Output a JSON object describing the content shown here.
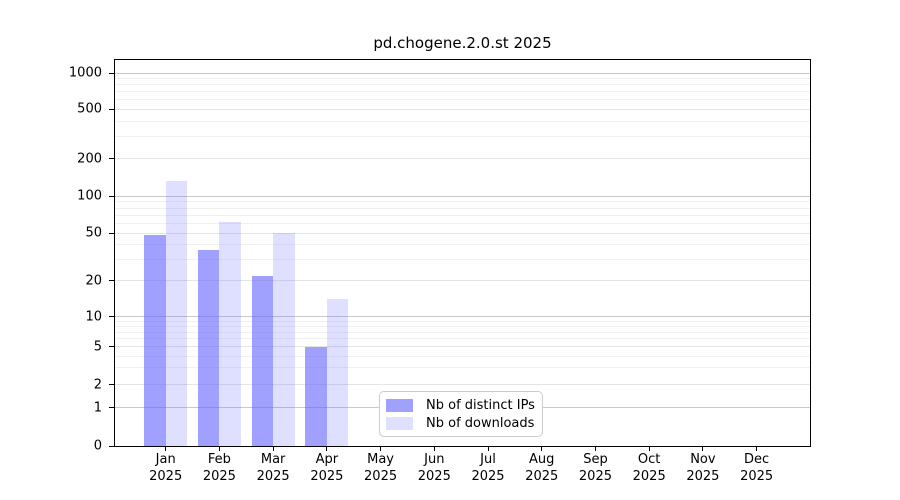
{
  "chart_data": {
    "type": "bar",
    "title": "pd.chogene.2.0.st 2025",
    "categories": [
      "Jan",
      "Feb",
      "Mar",
      "Apr",
      "May",
      "Jun",
      "Jul",
      "Aug",
      "Sep",
      "Oct",
      "Nov",
      "Dec"
    ],
    "year_label": "2025",
    "series": [
      {
        "name": "Nb of distinct IPs",
        "color": "rgba(102,102,255,0.62)",
        "values": [
          48,
          36,
          22,
          5,
          0,
          0,
          0,
          0,
          0,
          0,
          0,
          0
        ]
      },
      {
        "name": "Nb of downloads",
        "color": "rgba(102,102,255,0.21)",
        "values": [
          133,
          62,
          50,
          14,
          0,
          0,
          0,
          0,
          0,
          0,
          0,
          0
        ]
      }
    ],
    "yticks": [
      0,
      1,
      2,
      5,
      10,
      20,
      50,
      100,
      200,
      500,
      1000
    ],
    "yscale": "log-like with 0 baseline",
    "grid": true,
    "legend_position": "inside-bottom-center",
    "xlabel": "",
    "ylabel": ""
  }
}
